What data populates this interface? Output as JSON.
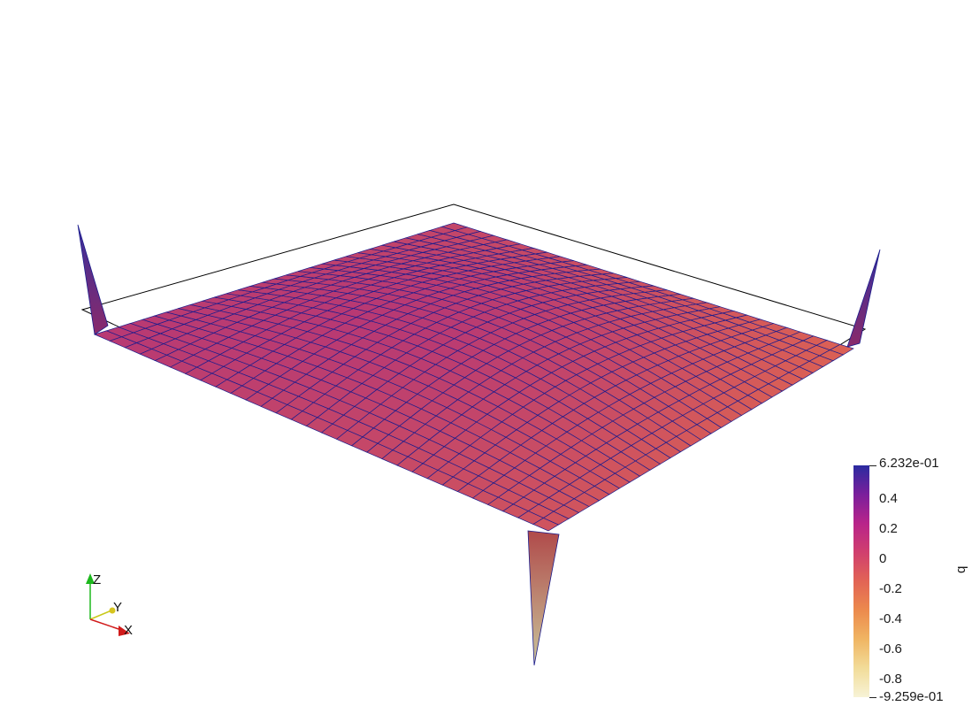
{
  "colorbar": {
    "title": "q",
    "max_label": "6.232e-01",
    "min_label": "-9.259e-01",
    "ticks": [
      "0.4",
      "0.2",
      "0",
      "-0.2",
      "-0.4",
      "-0.6",
      "-0.8"
    ],
    "colors": [
      "#2b2ba0",
      "#7a1f9c",
      "#b8248a",
      "#d03f6e",
      "#e26455",
      "#ec8a4d",
      "#f0b563",
      "#f2dc99",
      "#f7f3d6"
    ]
  },
  "orientation_axes": {
    "x_label": "X",
    "y_label": "Y",
    "z_label": "Z"
  }
}
